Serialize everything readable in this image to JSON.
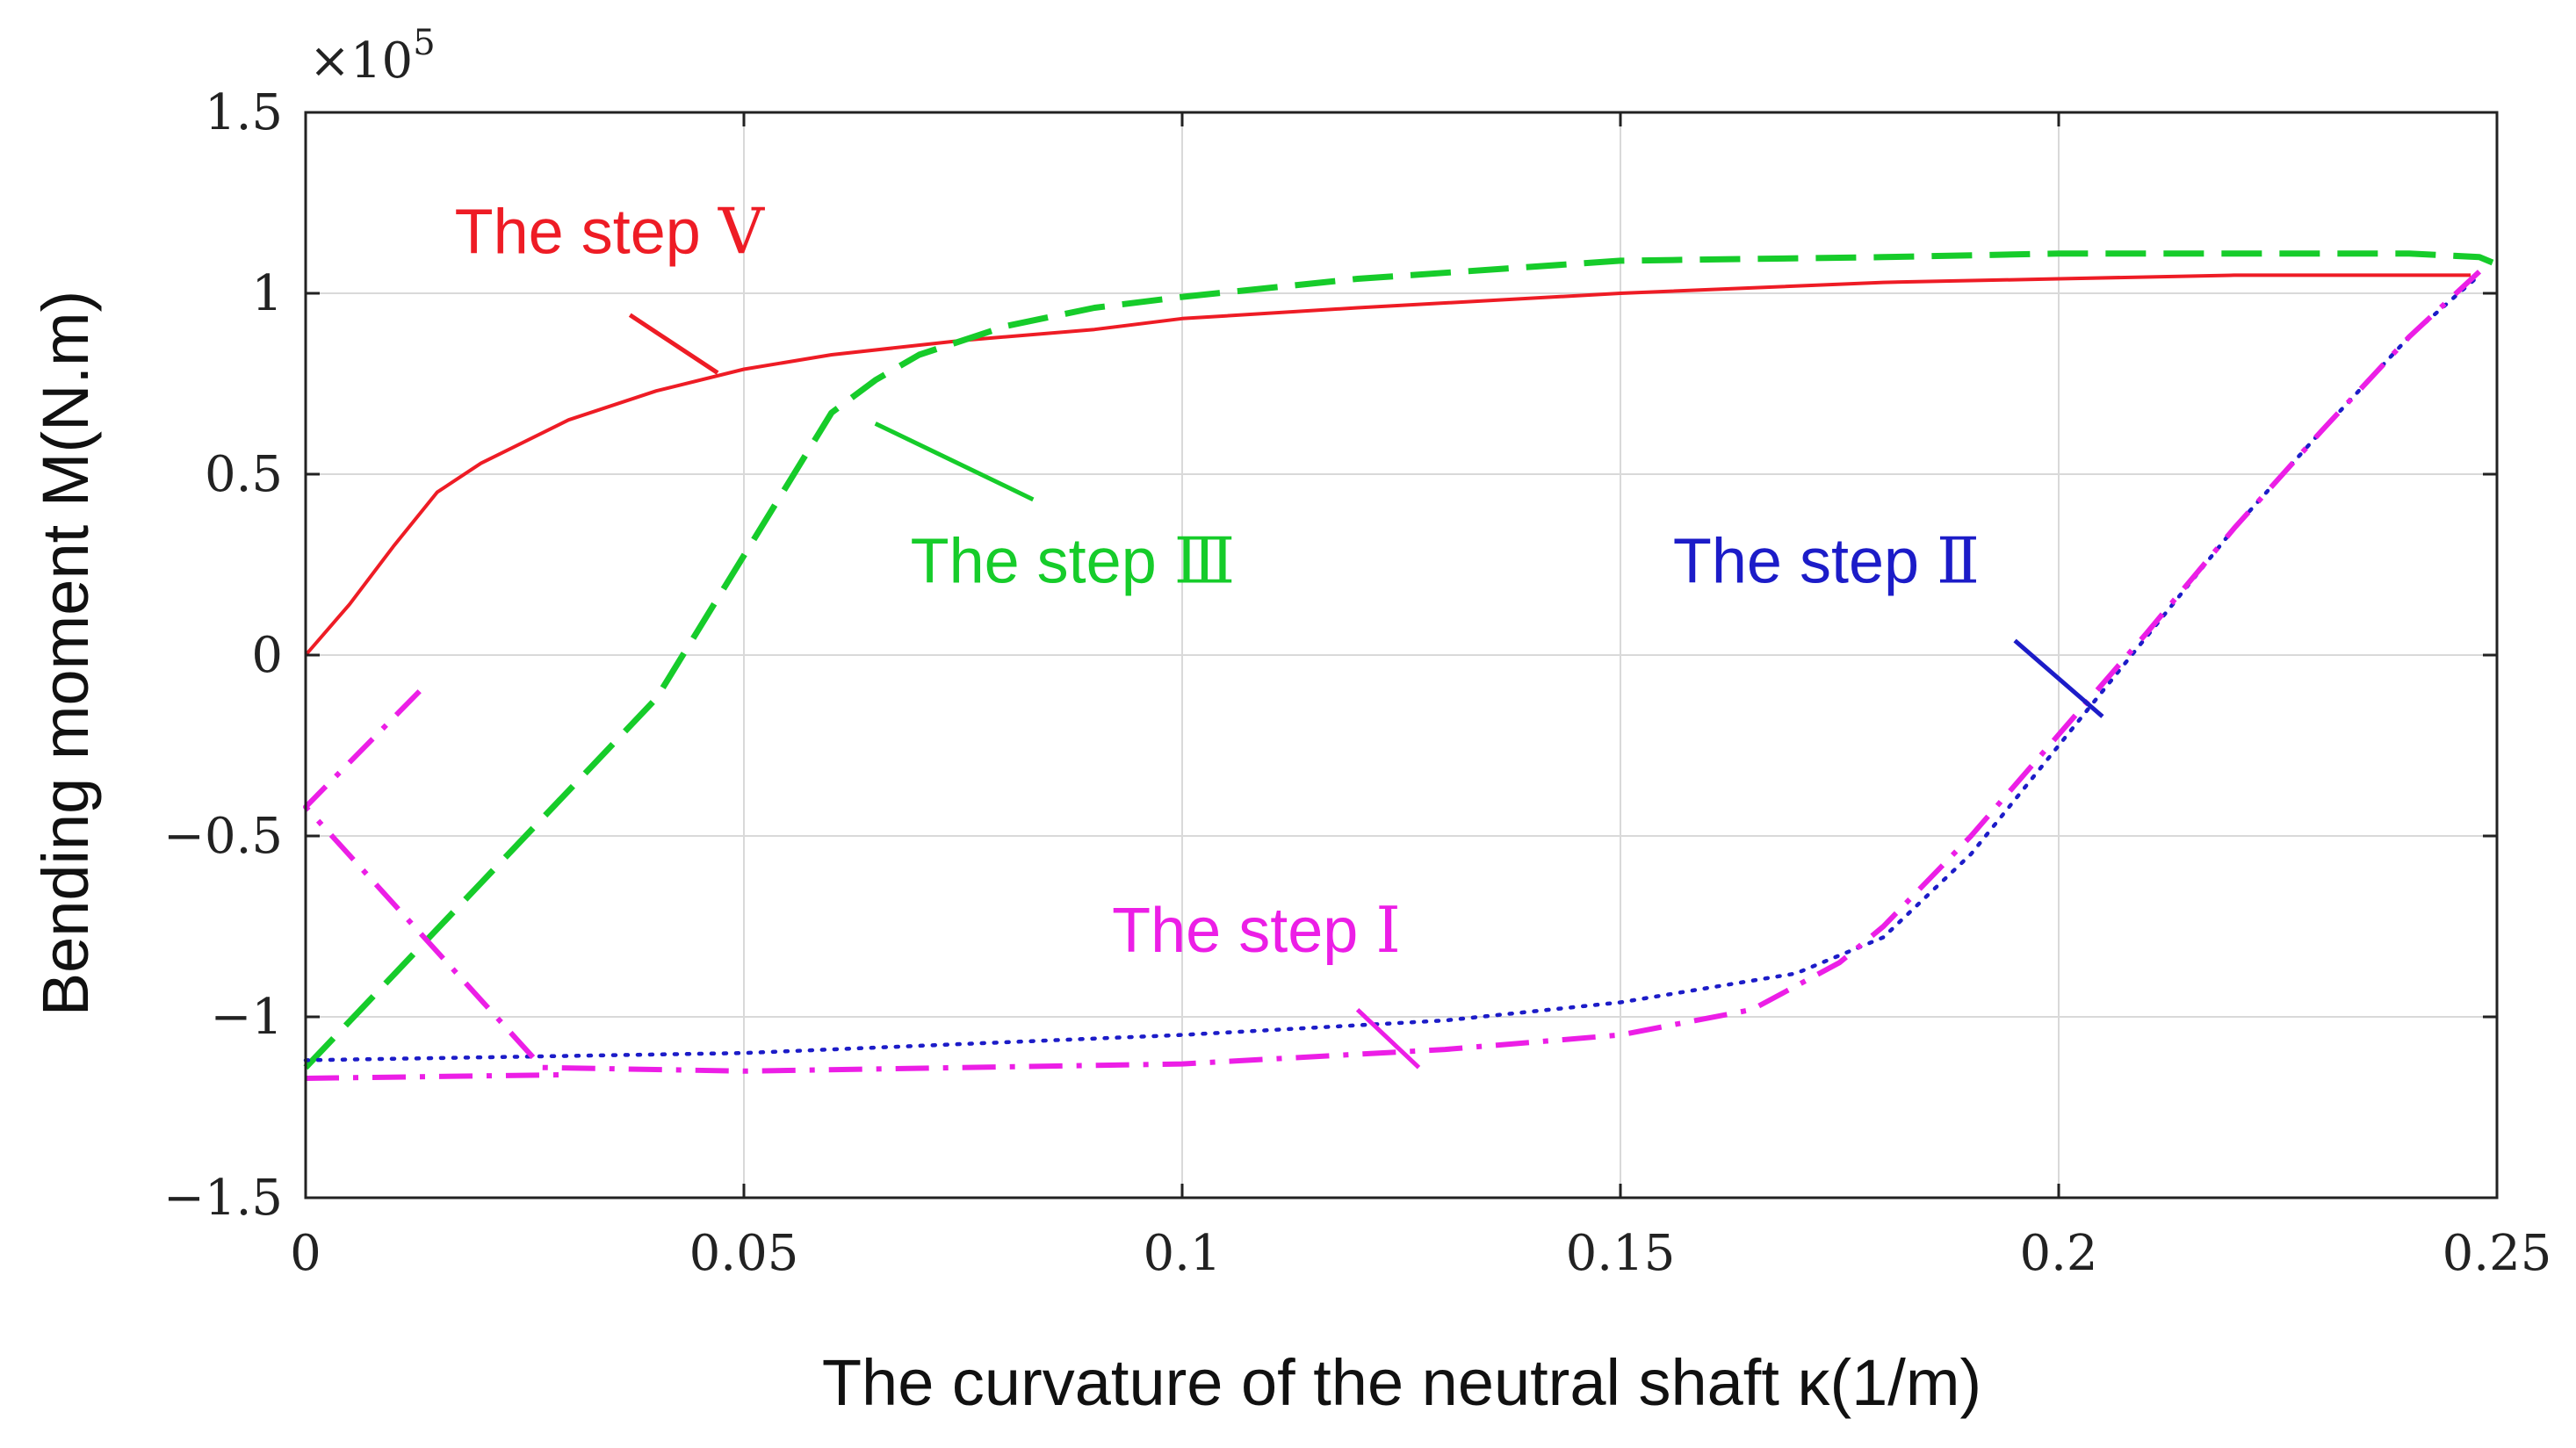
{
  "chart_data": {
    "type": "line",
    "xlabel": "The curvature of the neutral shaft κ(1/m)",
    "ylabel": "Bending moment M(N.m)",
    "y_multiplier": "×10",
    "y_multiplier_exponent": "5",
    "xlim": [
      0,
      0.25
    ],
    "ylim": [
      -1.5,
      1.5
    ],
    "grid": true,
    "x_ticks": [
      0,
      0.05,
      0.1,
      0.15,
      0.2,
      0.25
    ],
    "x_tick_labels": [
      "0",
      "0.05",
      "0.1",
      "0.15",
      "0.2",
      "0.25"
    ],
    "y_ticks": [
      -1.5,
      -1,
      -0.5,
      0,
      0.5,
      1,
      1.5
    ],
    "y_tick_labels": [
      "−1.5",
      "−1",
      "−0.5",
      "0",
      "0.5",
      "1",
      "1.5"
    ],
    "series": [
      {
        "id": "step5",
        "name": "The step Ⅴ",
        "color": "#ee1c25",
        "style": "solid",
        "x": [
          0,
          0.005,
          0.01,
          0.015,
          0.02,
          0.03,
          0.04,
          0.05,
          0.06,
          0.075,
          0.09,
          0.1,
          0.12,
          0.15,
          0.18,
          0.2,
          0.22,
          0.247
        ],
        "y": [
          0,
          0.14,
          0.3,
          0.45,
          0.53,
          0.65,
          0.73,
          0.79,
          0.83,
          0.87,
          0.9,
          0.93,
          0.96,
          1.0,
          1.03,
          1.04,
          1.05,
          1.05
        ]
      },
      {
        "id": "step3",
        "name": "The step Ⅲ",
        "color": "#16cc2a",
        "style": "dashed",
        "x": [
          0,
          0.02,
          0.04,
          0.06,
          0.065,
          0.07,
          0.08,
          0.09,
          0.1,
          0.12,
          0.15,
          0.18,
          0.2,
          0.22,
          0.24,
          0.248,
          0.25
        ],
        "y": [
          -1.14,
          -0.63,
          -0.12,
          0.67,
          0.76,
          0.83,
          0.91,
          0.96,
          0.99,
          1.04,
          1.09,
          1.1,
          1.11,
          1.11,
          1.11,
          1.1,
          1.08
        ]
      },
      {
        "id": "step2",
        "name": "The step Ⅱ",
        "color": "#1c1cc8",
        "style": "dotted",
        "x": [
          0,
          0.05,
          0.1,
          0.13,
          0.15,
          0.17,
          0.18,
          0.19,
          0.2,
          0.21,
          0.22,
          0.23,
          0.24,
          0.248
        ],
        "y": [
          -1.12,
          -1.1,
          -1.05,
          -1.01,
          -0.96,
          -0.88,
          -0.78,
          -0.55,
          -0.25,
          0.05,
          0.35,
          0.62,
          0.88,
          1.05
        ]
      },
      {
        "id": "step1",
        "name": "The step Ⅰ",
        "color": "#ec1ee6",
        "style": "dashdot",
        "x": [
          0.013,
          0,
          0.027,
          0.05,
          0.1,
          0.13,
          0.15,
          0.165,
          0.175,
          0.18,
          0.19,
          0.2,
          0.21,
          0.22,
          0.23,
          0.24,
          0.248
        ],
        "y": [
          -0.1,
          -0.42,
          -1.14,
          -1.15,
          -1.13,
          -1.09,
          -1.05,
          -0.98,
          -0.85,
          -0.75,
          -0.5,
          -0.22,
          0.06,
          0.35,
          0.62,
          0.88,
          1.06
        ]
      },
      {
        "id": "step1-tail",
        "name": "",
        "color": "#ec1ee6",
        "style": "dashdot",
        "x": [
          0,
          0.03
        ],
        "y": [
          -1.17,
          -1.16
        ]
      }
    ],
    "annotations": [
      {
        "id": "step5",
        "label": "The step ",
        "numeral": "Ⅴ",
        "color": "#ee1c25",
        "at": [
          0.017,
          1.11
        ],
        "arrow_from": [
          0.037,
          0.94
        ],
        "arrow_to": [
          0.047,
          0.78
        ]
      },
      {
        "id": "step3",
        "label": "The step ",
        "numeral": "Ⅲ",
        "color": "#16cc2a",
        "at": [
          0.069,
          0.2
        ],
        "arrow_from": [
          0.083,
          0.43
        ],
        "arrow_to": [
          0.065,
          0.64
        ]
      },
      {
        "id": "step2",
        "label": "The step ",
        "numeral": "Ⅱ",
        "color": "#1c1cc8",
        "at": [
          0.156,
          0.2
        ],
        "arrow_from": [
          0.195,
          0.04
        ],
        "arrow_to": [
          0.205,
          -0.17
        ]
      },
      {
        "id": "step1",
        "label": "The step ",
        "numeral": "Ⅰ",
        "color": "#ec1ee6",
        "at": [
          0.092,
          -0.82
        ],
        "arrow_from": [
          0.12,
          -0.98
        ],
        "arrow_to": [
          0.127,
          -1.14
        ]
      }
    ]
  }
}
